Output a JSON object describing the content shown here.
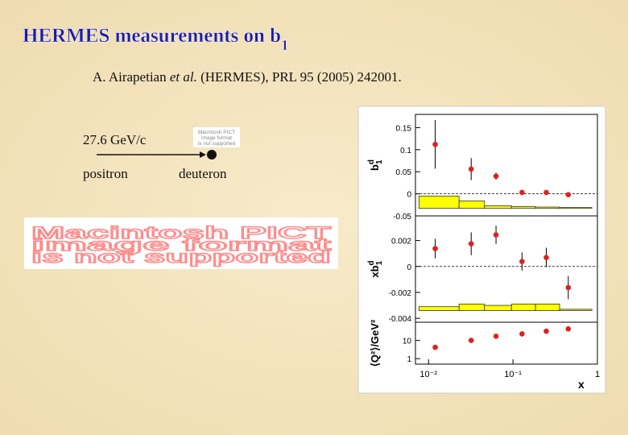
{
  "title": {
    "main": "HERMES measurements on b",
    "subscript": "1"
  },
  "citation": {
    "authors": "A. Airapetian ",
    "et_al": "et al.",
    "rest": " (HERMES), PRL 95 (2005) 242001."
  },
  "diagram": {
    "beam": "27.6 GeV/c",
    "projectile": "positron",
    "target": "deuteron",
    "pict_small": [
      "Macintosh PICT",
      "image format",
      "is not supported"
    ]
  },
  "pict_large": [
    "Macintosh PICT",
    "image format",
    "is not supported"
  ],
  "chart_data": [
    {
      "type": "errorbar",
      "ylabel": {
        "base": "b",
        "sup": "d",
        "sub": "1"
      },
      "x": [
        0.012,
        0.032,
        0.063,
        0.128,
        0.248,
        0.452
      ],
      "values": [
        0.112,
        0.056,
        0.04,
        0.003,
        0.003,
        -0.002
      ],
      "errors": [
        0.055,
        0.025,
        0.008,
        0.002,
        0.002,
        0.002
      ],
      "color": "#e02020",
      "xlog": true,
      "xlim": [
        0.007,
        1
      ],
      "ylim": [
        -0.05,
        0.18
      ],
      "yticks": [
        -0.05,
        0,
        0.05,
        0.1,
        0.15
      ],
      "zero_line": true,
      "band": {
        "edges": [
          0.0077,
          0.023,
          0.046,
          0.096,
          0.185,
          0.357,
          0.86
        ],
        "tops": [
          -0.005,
          -0.016,
          -0.027,
          -0.029,
          -0.03,
          -0.031
        ],
        "base": -0.033,
        "color": "#ffff00"
      }
    },
    {
      "type": "errorbar",
      "ylabel": {
        "base": "xb",
        "sup": "d",
        "sub": "1"
      },
      "x": [
        0.012,
        0.032,
        0.063,
        0.128,
        0.248,
        0.452
      ],
      "values": [
        0.00138,
        0.00175,
        0.00244,
        0.00038,
        0.00069,
        -0.00163
      ],
      "errors": [
        0.00075,
        0.00088,
        0.0007,
        0.0007,
        0.00075,
        0.0009
      ],
      "color": "#e02020",
      "xlog": true,
      "xlim": [
        0.007,
        1
      ],
      "ylim": [
        -0.0043,
        0.0039
      ],
      "yticks": [
        -0.004,
        -0.002,
        0,
        0.002
      ],
      "zero_line": true,
      "band": {
        "edges": [
          0.0077,
          0.023,
          0.046,
          0.096,
          0.185,
          0.357,
          0.86
        ],
        "tops": [
          -0.0031,
          -0.0029,
          -0.003,
          -0.0029,
          -0.0029,
          -0.0033
        ],
        "base": -0.0034,
        "color": "#ffff00"
      }
    },
    {
      "type": "scatter",
      "ylabel": "⟨Q²⟩/GeV²",
      "xlabel": "x",
      "x": [
        0.012,
        0.032,
        0.063,
        0.128,
        0.248,
        0.452
      ],
      "values": [
        4.2,
        10,
        17,
        23,
        32,
        43
      ],
      "color": "#e02020",
      "xlog": true,
      "xlim": [
        0.007,
        1
      ],
      "xticks": [
        {
          "value": 0.01,
          "label": "10⁻²"
        },
        {
          "value": 0.1,
          "label": "10⁻¹"
        },
        1
      ],
      "ylog": true,
      "ylim": [
        0.5,
        100
      ],
      "yticks": [
        1,
        10
      ]
    }
  ]
}
